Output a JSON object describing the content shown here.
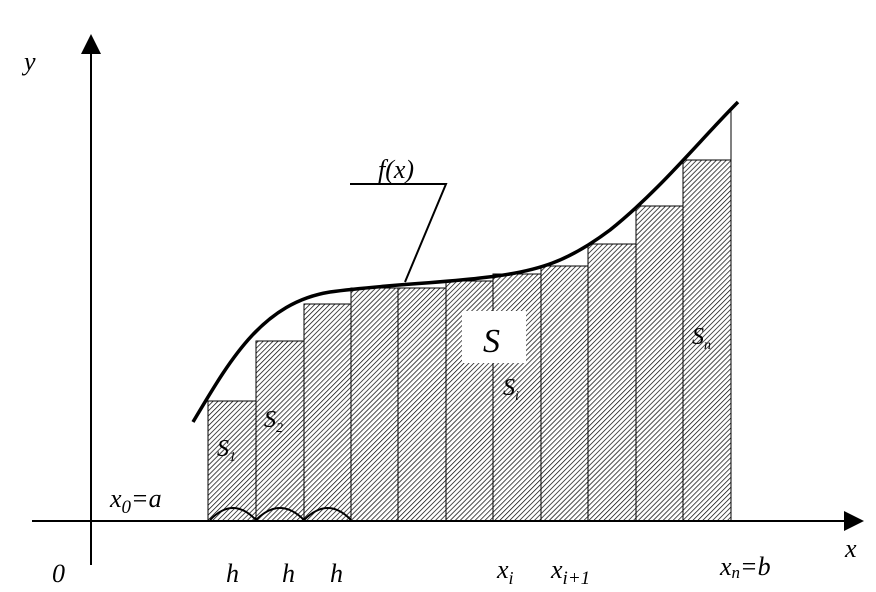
{
  "labels": {
    "y_axis": "y",
    "x_axis": "x",
    "origin": "0",
    "curve": "f(x)",
    "area": "S",
    "x0_main": "x",
    "x0_sub": "0",
    "x0_rest": "=a",
    "xn_main": "x",
    "xn_sub": "n",
    "xn_rest": "=b",
    "xi_main": "x",
    "xi_sub": "i",
    "xi1_main": "x",
    "xi1_sub": "i+1",
    "h1": "h",
    "h2": "h",
    "h3": "h",
    "s1_main": "S",
    "s1_sub": "1",
    "s2_main": "S",
    "s2_sub": "2",
    "si_main": "S",
    "si_sub": "i",
    "sn_main": "S",
    "sn_sub": "n"
  },
  "colors": {
    "stroke": "#000000",
    "hatch": "#000000",
    "background": "#ffffff"
  }
}
